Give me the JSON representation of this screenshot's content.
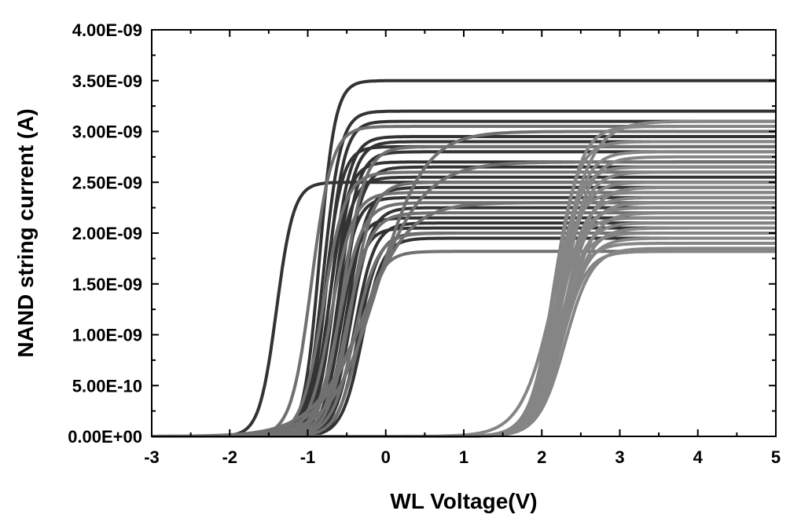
{
  "chart_data": {
    "type": "line",
    "title": "",
    "xlabel": "WL Voltage(V)",
    "ylabel": "NAND string current (A)",
    "xlim": [
      -3,
      5
    ],
    "ylim": [
      0,
      4e-09
    ],
    "x_ticks": [
      "-3",
      "-2",
      "-1",
      "0",
      "1",
      "2",
      "3",
      "4",
      "5"
    ],
    "y_ticks": [
      "0.00E+00",
      "5.00E-10",
      "1.00E-09",
      "1.50E-09",
      "2.00E-09",
      "2.50E-09",
      "3.00E-09",
      "3.50E-09",
      "4.00E-09"
    ],
    "grid": false,
    "legend": "none",
    "curve_model": "sigmoid: I = Isat / (1 + exp(-(V - Vth) / s))",
    "series_groups": [
      {
        "name": "",
        "color": "#333333",
        "curves": [
          {
            "vth": -1.4,
            "isat": 2.5e-09,
            "s": 0.11
          },
          {
            "vth": -0.85,
            "isat": 3.5e-09,
            "s": 0.1
          },
          {
            "vth": -0.8,
            "isat": 3.2e-09,
            "s": 0.11
          },
          {
            "vth": -0.75,
            "isat": 3.1e-09,
            "s": 0.11
          },
          {
            "vth": -0.7,
            "isat": 2.95e-09,
            "s": 0.12
          },
          {
            "vth": -0.65,
            "isat": 2.9e-09,
            "s": 0.12
          },
          {
            "vth": -0.78,
            "isat": 2.85e-09,
            "s": 0.11
          },
          {
            "vth": -0.6,
            "isat": 2.8e-09,
            "s": 0.12
          },
          {
            "vth": -0.72,
            "isat": 2.7e-09,
            "s": 0.12
          },
          {
            "vth": -0.55,
            "isat": 2.65e-09,
            "s": 0.12
          },
          {
            "vth": -0.68,
            "isat": 2.55e-09,
            "s": 0.12
          },
          {
            "vth": -0.5,
            "isat": 2.45e-09,
            "s": 0.13
          },
          {
            "vth": -0.62,
            "isat": 2.35e-09,
            "s": 0.12
          },
          {
            "vth": -0.45,
            "isat": 2.25e-09,
            "s": 0.13
          },
          {
            "vth": -0.58,
            "isat": 2.15e-09,
            "s": 0.12
          },
          {
            "vth": -0.4,
            "isat": 2.1e-09,
            "s": 0.13
          },
          {
            "vth": -0.52,
            "isat": 2.05e-09,
            "s": 0.12
          },
          {
            "vth": -0.35,
            "isat": 2e-09,
            "s": 0.13
          },
          {
            "vth": -0.3,
            "isat": 1.95e-09,
            "s": 0.13
          }
        ]
      },
      {
        "name": "",
        "color": "#707070",
        "curves": [
          {
            "vth": -0.95,
            "isat": 3.05e-09,
            "s": 0.13
          },
          {
            "vth": -0.8,
            "isat": 2.6e-09,
            "s": 0.14
          },
          {
            "vth": -0.7,
            "isat": 2.4e-09,
            "s": 0.14
          },
          {
            "vth": -0.6,
            "isat": 2.3e-09,
            "s": 0.15
          },
          {
            "vth": -0.5,
            "isat": 2.2e-09,
            "s": 0.15
          },
          {
            "vth": -0.45,
            "isat": 2.5e-09,
            "s": 0.14
          },
          {
            "vth": -0.4,
            "isat": 2e-09,
            "s": 0.15
          },
          {
            "vth": -0.35,
            "isat": 1.82e-09,
            "s": 0.14
          },
          {
            "vth": -0.3,
            "isat": 2.3e-09,
            "s": 0.3
          },
          {
            "vth": -0.2,
            "isat": 2.7e-09,
            "s": 0.35
          },
          {
            "vth": -0.55,
            "isat": 2.85e-09,
            "s": 0.14
          },
          {
            "vth": -0.1,
            "isat": 3e-09,
            "s": 0.3
          }
        ]
      },
      {
        "name": "",
        "color": "#858585",
        "curves": [
          {
            "vth": 2.18,
            "isat": 3.05e-09,
            "s": 0.16
          },
          {
            "vth": 2.2,
            "isat": 3.1e-09,
            "s": 0.22
          },
          {
            "vth": 2.15,
            "isat": 2.9e-09,
            "s": 0.15
          },
          {
            "vth": 2.22,
            "isat": 2.8e-09,
            "s": 0.16
          },
          {
            "vth": 2.25,
            "isat": 2.75e-09,
            "s": 0.17
          },
          {
            "vth": 2.18,
            "isat": 2.65e-09,
            "s": 0.15
          },
          {
            "vth": 2.24,
            "isat": 2.6e-09,
            "s": 0.16
          },
          {
            "vth": 2.2,
            "isat": 2.5e-09,
            "s": 0.16
          },
          {
            "vth": 2.28,
            "isat": 2.45e-09,
            "s": 0.17
          },
          {
            "vth": 2.15,
            "isat": 2.4e-09,
            "s": 0.15
          },
          {
            "vth": 2.22,
            "isat": 2.35e-09,
            "s": 0.16
          },
          {
            "vth": 2.26,
            "isat": 2.3e-09,
            "s": 0.17
          },
          {
            "vth": 2.2,
            "isat": 2.25e-09,
            "s": 0.16
          },
          {
            "vth": 2.3,
            "isat": 2.2e-09,
            "s": 0.17
          },
          {
            "vth": 2.18,
            "isat": 2.15e-09,
            "s": 0.15
          },
          {
            "vth": 2.24,
            "isat": 2.1e-09,
            "s": 0.16
          },
          {
            "vth": 2.28,
            "isat": 2.05e-09,
            "s": 0.17
          },
          {
            "vth": 2.2,
            "isat": 2e-09,
            "s": 0.16
          },
          {
            "vth": 2.26,
            "isat": 1.95e-09,
            "s": 0.17
          },
          {
            "vth": 2.22,
            "isat": 1.9e-09,
            "s": 0.16
          },
          {
            "vth": 2.3,
            "isat": 1.85e-09,
            "s": 0.17
          },
          {
            "vth": 2.25,
            "isat": 1.82e-09,
            "s": 0.16
          }
        ]
      }
    ]
  }
}
